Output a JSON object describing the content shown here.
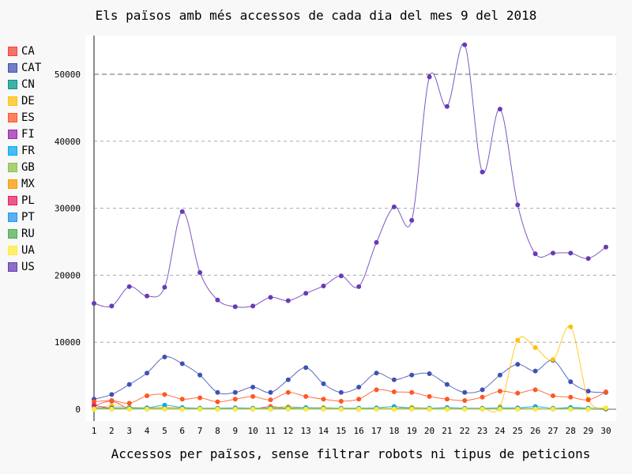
{
  "chart_data": {
    "type": "line",
    "title": "Els països amb més accessos de cada dia del mes 9 del 2018",
    "xlabel": "Accessos per països, sense filtrar robots ni tipus de peticions",
    "ylabel": "",
    "x": [
      1,
      2,
      3,
      4,
      5,
      6,
      7,
      8,
      9,
      10,
      11,
      12,
      13,
      14,
      15,
      16,
      17,
      18,
      19,
      20,
      21,
      22,
      23,
      24,
      25,
      26,
      27,
      28,
      29,
      30
    ],
    "y_ticks": [
      0,
      10000,
      20000,
      30000,
      40000,
      50000
    ],
    "y_tick_labels": [
      "0",
      "10000",
      "20000",
      "30000",
      "40000",
      "50000"
    ],
    "ylim": [
      -1800,
      56500
    ],
    "grid": true,
    "legend_position": "left",
    "series": [
      {
        "name": "CA",
        "color": "#F44336",
        "values": [
          500,
          1200,
          100,
          50,
          100,
          50,
          50,
          30,
          30,
          30,
          400,
          100,
          50,
          50,
          30,
          30,
          50,
          50,
          50,
          30,
          30,
          30,
          30,
          50,
          50,
          50,
          50,
          50,
          50,
          50
        ]
      },
      {
        "name": "CAT",
        "color": "#3F51B5",
        "values": [
          1500,
          2200,
          3700,
          5400,
          7800,
          6800,
          5100,
          2500,
          2500,
          3300,
          2500,
          4400,
          6200,
          3800,
          2500,
          3300,
          5400,
          4400,
          5100,
          5300,
          3700,
          2500,
          2900,
          5100,
          6700,
          5700,
          7300,
          4100,
          2700,
          2500
        ]
      },
      {
        "name": "CN",
        "color": "#009688",
        "values": [
          100,
          100,
          100,
          150,
          100,
          100,
          80,
          100,
          100,
          80,
          80,
          100,
          80,
          80,
          80,
          150,
          100,
          100,
          100,
          100,
          50,
          80,
          80,
          100,
          100,
          100,
          80,
          250,
          150,
          50
        ]
      },
      {
        "name": "DE",
        "color": "#FFC107",
        "values": [
          200,
          500,
          300,
          200,
          300,
          200,
          150,
          150,
          150,
          150,
          200,
          400,
          200,
          250,
          150,
          150,
          150,
          150,
          300,
          150,
          150,
          150,
          150,
          400,
          10300,
          9200,
          7400,
          12300,
          1500,
          200
        ]
      },
      {
        "name": "ES",
        "color": "#FF5722",
        "values": [
          1100,
          1300,
          900,
          2000,
          2200,
          1500,
          1700,
          1100,
          1500,
          1900,
          1400,
          2500,
          1900,
          1500,
          1200,
          1500,
          2900,
          2600,
          2500,
          1900,
          1500,
          1300,
          1800,
          2700,
          2400,
          2900,
          2000,
          1800,
          1400,
          2600
        ]
      },
      {
        "name": "FI",
        "color": "#9C27B0",
        "values": [
          50,
          50,
          50,
          50,
          50,
          50,
          50,
          50,
          50,
          50,
          50,
          50,
          50,
          50,
          50,
          50,
          50,
          50,
          50,
          50,
          50,
          50,
          50,
          50,
          50,
          50,
          50,
          50,
          50,
          50
        ]
      },
      {
        "name": "FR",
        "color": "#03A9F4",
        "values": [
          150,
          200,
          200,
          200,
          600,
          250,
          150,
          150,
          200,
          150,
          150,
          200,
          250,
          150,
          150,
          150,
          200,
          400,
          150,
          150,
          250,
          150,
          150,
          200,
          200,
          400,
          150,
          200,
          150,
          150
        ]
      },
      {
        "name": "GB",
        "color": "#8BC34A",
        "values": [
          80,
          80,
          80,
          80,
          80,
          80,
          80,
          80,
          80,
          80,
          80,
          80,
          80,
          80,
          80,
          80,
          80,
          80,
          80,
          80,
          80,
          80,
          80,
          80,
          80,
          80,
          80,
          80,
          80,
          80
        ]
      },
      {
        "name": "MX",
        "color": "#FF9800",
        "values": [
          30,
          30,
          30,
          30,
          30,
          30,
          30,
          30,
          30,
          30,
          30,
          30,
          30,
          30,
          30,
          30,
          30,
          30,
          30,
          30,
          30,
          30,
          30,
          30,
          30,
          30,
          30,
          30,
          30,
          30
        ]
      },
      {
        "name": "PL",
        "color": "#E91E63",
        "values": [
          600,
          100,
          30,
          30,
          30,
          30,
          30,
          30,
          30,
          30,
          30,
          30,
          30,
          30,
          30,
          30,
          30,
          30,
          30,
          30,
          30,
          30,
          30,
          30,
          30,
          30,
          30,
          30,
          30,
          30
        ]
      },
      {
        "name": "PT",
        "color": "#2196F3",
        "values": [
          60,
          60,
          60,
          60,
          60,
          60,
          60,
          60,
          60,
          60,
          60,
          60,
          60,
          60,
          60,
          60,
          60,
          60,
          60,
          60,
          60,
          60,
          60,
          60,
          60,
          60,
          60,
          60,
          60,
          60
        ]
      },
      {
        "name": "RU",
        "color": "#4CAF50",
        "values": [
          40,
          40,
          40,
          40,
          40,
          40,
          40,
          40,
          40,
          40,
          40,
          40,
          40,
          40,
          40,
          40,
          40,
          40,
          40,
          40,
          40,
          40,
          40,
          40,
          40,
          40,
          40,
          40,
          40,
          40
        ]
      },
      {
        "name": "UA",
        "color": "#FFEB3B",
        "values": [
          20,
          20,
          20,
          20,
          20,
          20,
          20,
          20,
          20,
          20,
          20,
          20,
          20,
          20,
          20,
          20,
          20,
          20,
          20,
          20,
          20,
          20,
          20,
          20,
          20,
          20,
          20,
          20,
          20,
          200
        ]
      },
      {
        "name": "US",
        "color": "#673AB7",
        "values": [
          15800,
          15400,
          18300,
          16900,
          18200,
          29500,
          20400,
          16300,
          15300,
          15400,
          16700,
          16200,
          17300,
          18400,
          19900,
          18300,
          24900,
          30200,
          28200,
          49600,
          45200,
          54400,
          35400,
          44800,
          30500,
          23200,
          23300,
          23300,
          22500,
          24200
        ]
      }
    ]
  }
}
